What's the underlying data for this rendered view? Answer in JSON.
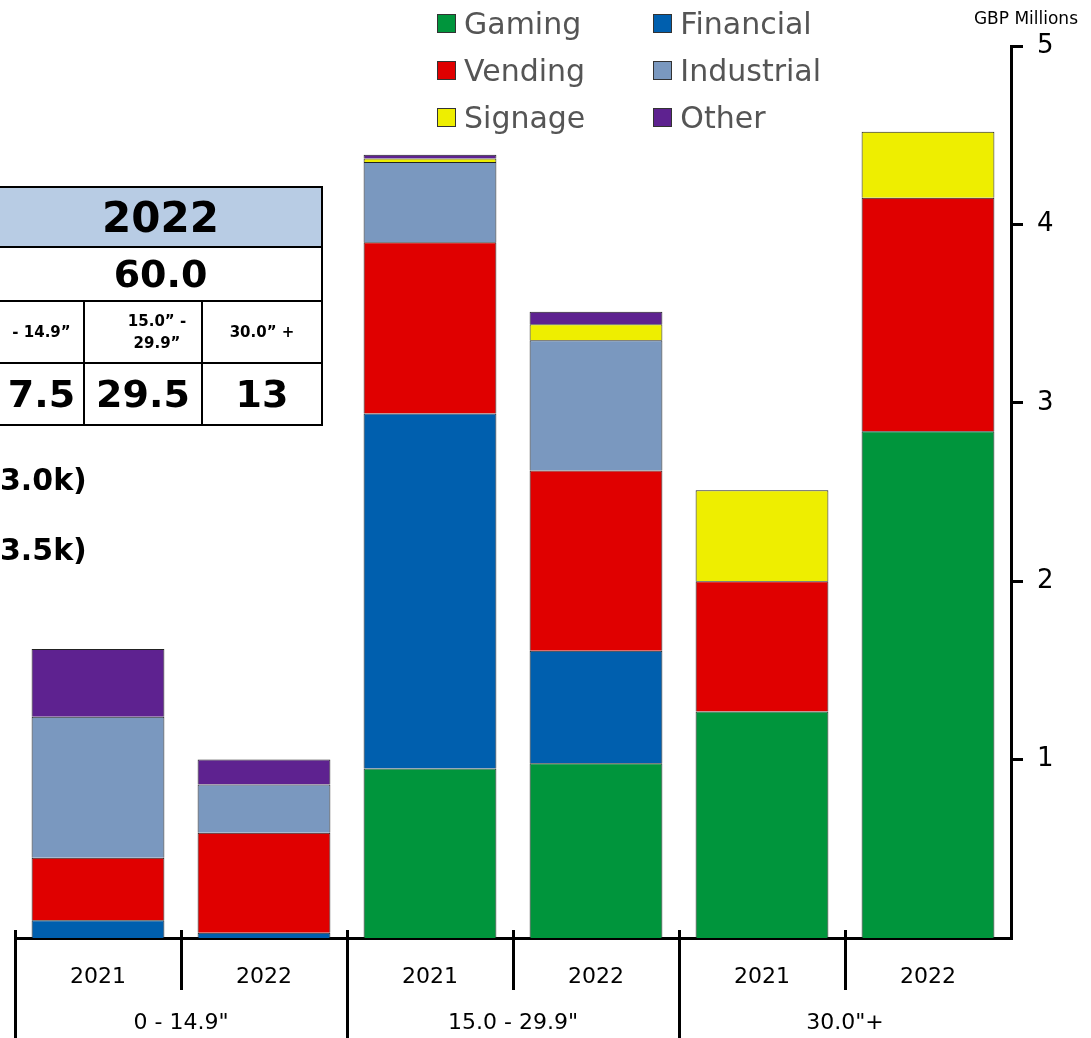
{
  "chart_data": {
    "type": "bar",
    "stacked": true,
    "ylabel": "GBP Millions",
    "categories": [
      "2021",
      "2022",
      "2021",
      "2022",
      "2021",
      "2022"
    ],
    "series": [
      {
        "name": "Gaming",
        "color": "#00953c",
        "values": [
          null,
          null,
          0.95,
          0.98,
          1.27,
          2.84
        ]
      },
      {
        "name": "Financial",
        "color": "#005fae",
        "values": [
          0.1,
          0.03,
          1.99,
          0.63,
          null,
          null
        ]
      },
      {
        "name": "Vending",
        "color": "#e00000",
        "values": [
          0.35,
          0.56,
          0.96,
          1.01,
          0.73,
          1.31
        ]
      },
      {
        "name": "Industrial",
        "color": "#7a98bf",
        "values": [
          0.79,
          0.27,
          0.45,
          0.73,
          null,
          null
        ]
      },
      {
        "name": "Signage",
        "color": "#eeee00",
        "values": [
          null,
          null,
          0.02,
          0.09,
          0.51,
          0.37
        ]
      },
      {
        "name": "Other",
        "color": "#5e2290",
        "values": [
          0.38,
          0.14,
          0.02,
          0.07,
          null,
          null
        ]
      }
    ],
    "ylim": [
      0,
      5
    ],
    "yticks": [
      1,
      2,
      3,
      4,
      5
    ],
    "grid": false,
    "legend": "top right",
    "annotations": [
      "0 - 14.9\"",
      "15.0 - 29.9\"",
      "30.0\"+",
      "2022",
      "60.0",
      "- 14.9”",
      "15.0” - 29.9”",
      "30.0” +",
      "7.5",
      "29.5",
      "13",
      "3.0k)",
      "3.5k)"
    ]
  }
}
